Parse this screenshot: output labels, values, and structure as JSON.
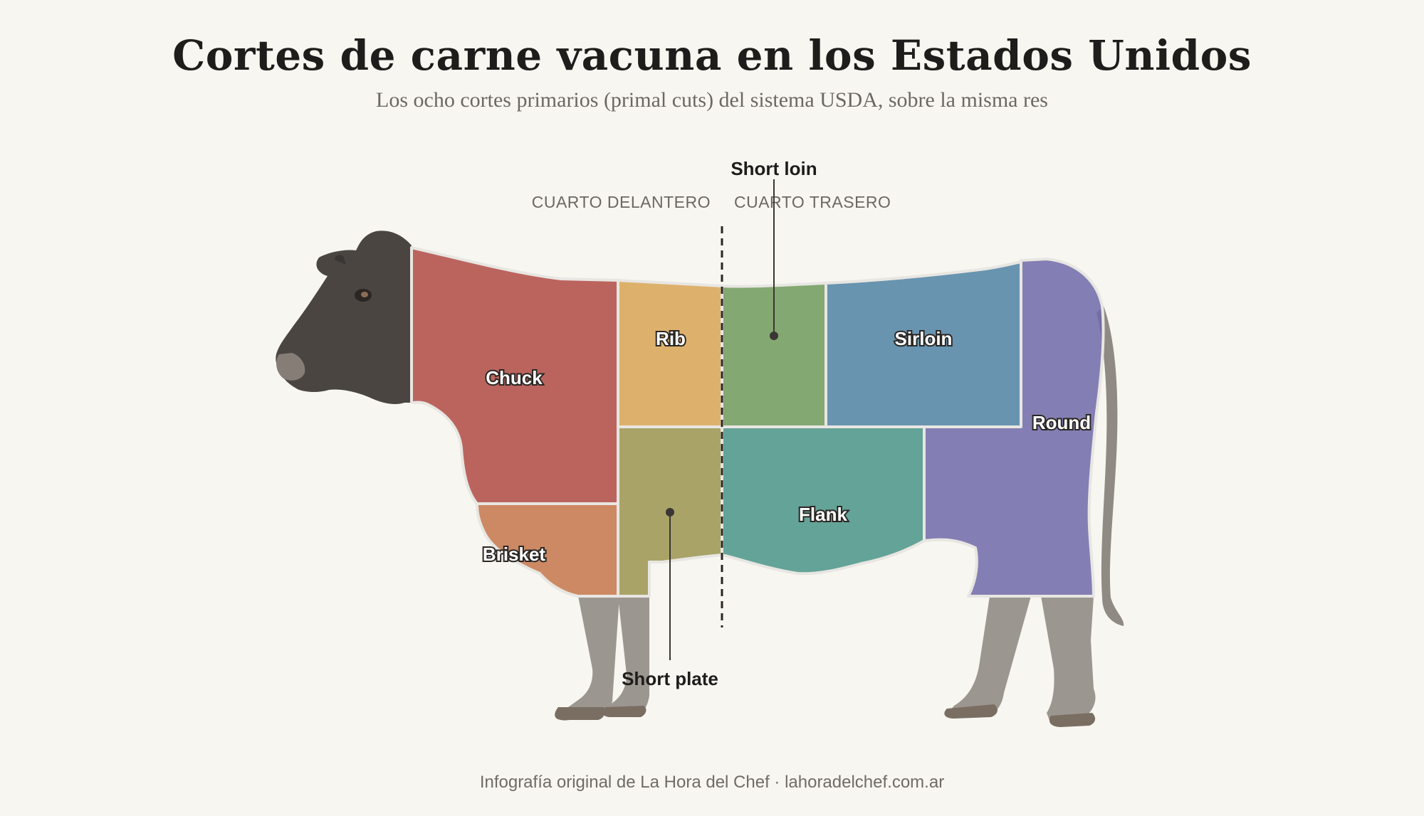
{
  "header": {
    "title": "Cortes de carne vacuna en los Estados Unidos",
    "subtitle": "Los ocho cortes primarios (primal cuts) del sistema USDA, sobre la misma res"
  },
  "quarters": {
    "front": "CUARTO DELANTERO",
    "rear": "CUARTO TRASERO"
  },
  "cuts": [
    {
      "id": "chuck",
      "label": "Chuck",
      "color": "#b04a44"
    },
    {
      "id": "brisket",
      "label": "Brisket",
      "color": "#c4764a"
    },
    {
      "id": "rib",
      "label": "Rib",
      "color": "#d8a455"
    },
    {
      "id": "short-plate",
      "label": "Short plate",
      "color": "#9c9450"
    },
    {
      "id": "short-loin",
      "label": "Short loin",
      "color": "#6e9a5c"
    },
    {
      "id": "sirloin",
      "label": "Sirloin",
      "color": "#4f82a4"
    },
    {
      "id": "flank",
      "label": "Flank",
      "color": "#4a9488"
    },
    {
      "id": "round",
      "label": "Round",
      "color": "#6e68a8"
    }
  ],
  "footer": {
    "credit": "Infografía original de La Hora del Chef · lahoradelchef.com.ar"
  }
}
